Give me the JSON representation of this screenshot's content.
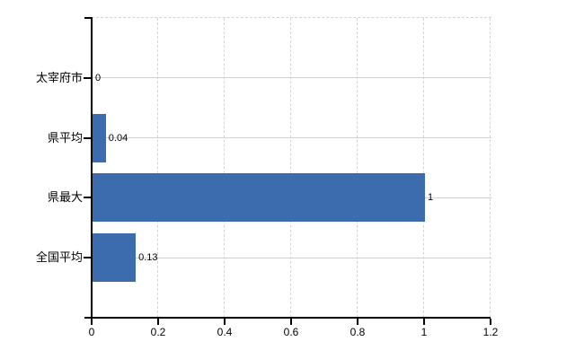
{
  "chart_data": {
    "type": "bar",
    "orientation": "horizontal",
    "title": "",
    "categories": [
      "太宰府市",
      "県平均",
      "県最大",
      "全国平均"
    ],
    "values": [
      0,
      0.04,
      1,
      0.13
    ],
    "value_labels": [
      "0",
      "0.04",
      "1",
      "0.13"
    ],
    "xlabel": "",
    "ylabel": "",
    "xlim": [
      0,
      1.2
    ],
    "xticks": [
      0,
      0.2,
      0.4,
      0.6,
      0.8,
      1,
      1.2
    ],
    "xtick_labels": [
      "0",
      "0.2",
      "0.4",
      "0.6",
      "0.8",
      "1",
      "1.2"
    ],
    "legend": "none",
    "grid": {
      "horizontal_lines": "solid, one per category row center",
      "vertical_lines": "dashed, at every x tick",
      "top_border": "dashed",
      "right_border": "dashed"
    },
    "colors": {
      "bar": "#3c6bae",
      "axis": "#000000",
      "text": "#000000",
      "grid_horizontal": "#ccd3ca",
      "grid_vertical": "#d8d2d8",
      "background": "#ffffff"
    }
  }
}
